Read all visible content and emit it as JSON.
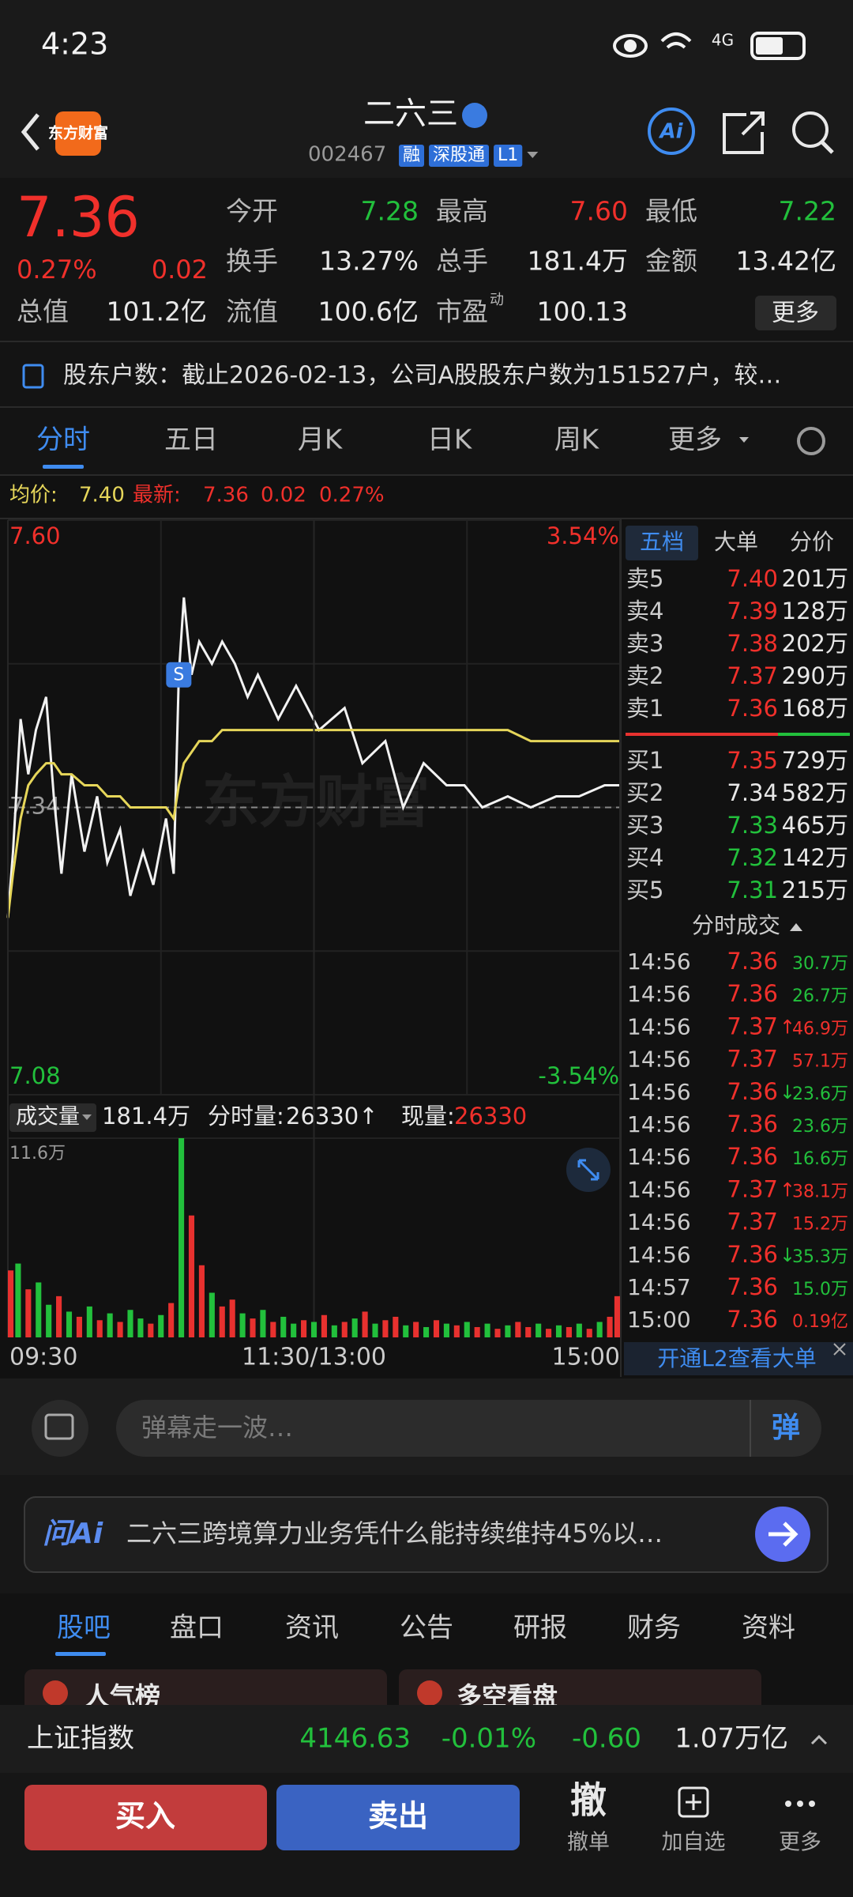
{
  "status_bar": {
    "time": "4:23",
    "network": "4G"
  },
  "header": {
    "logo": "东方财富",
    "name": "二六三",
    "code": "002467",
    "tags": [
      "融",
      "深股通",
      "L1"
    ],
    "ai": "Ai"
  },
  "quote": {
    "price": "7.36",
    "change_pct": "0.27%",
    "change": "0.02",
    "pe_badge": "动",
    "more": "更多",
    "fields": [
      {
        "label": "今开",
        "value": "7.28",
        "color": "#22c03c"
      },
      {
        "label": "最高",
        "value": "7.60",
        "color": "#f0302b"
      },
      {
        "label": "最低",
        "value": "7.22",
        "color": "#22c03c"
      },
      {
        "label": "换手",
        "value": "13.27%",
        "color": "#e8e8e8"
      },
      {
        "label": "总手",
        "value": "181.4万",
        "color": "#e8e8e8"
      },
      {
        "label": "金额",
        "value": "13.42亿",
        "color": "#e8e8e8"
      },
      {
        "label": "总值",
        "value": "101.2亿",
        "color": "#e8e8e8"
      },
      {
        "label": "流值",
        "value": "100.6亿",
        "color": "#e8e8e8"
      },
      {
        "label": "市盈",
        "value": "100.13",
        "color": "#e8e8e8"
      }
    ]
  },
  "news": "股东户数：截止2026-02-13，公司A股股东户数为151527户，较…",
  "tabs": [
    "分时",
    "五日",
    "月K",
    "日K",
    "周K",
    "更多"
  ],
  "summary": {
    "avg_label": "均价:",
    "avg": "7.40",
    "last_label": "最新:",
    "last": "7.36",
    "change": "0.02",
    "change_pct": "0.27%"
  },
  "chart_data": [
    {
      "type": "line",
      "watermark": "东方财富",
      "xlim": [
        0,
        240
      ],
      "ylim": [
        7.08,
        7.6
      ],
      "yticks": [
        {
          "value": 7.6,
          "label": "7.60"
        },
        7.34,
        7.08
      ],
      "y2lim": [
        -3.54,
        3.54
      ],
      "y2ticks": [
        {
          "value": 3.54,
          "label": "3.54%"
        },
        {
          "value": -3.54,
          "label": "-3.54%"
        }
      ],
      "x": [
        0,
        2,
        5,
        8,
        11,
        15,
        18,
        21,
        25,
        30,
        35,
        39,
        44,
        48,
        53,
        57,
        62,
        65,
        67,
        69,
        72,
        75,
        80,
        84,
        89,
        94,
        98,
        106,
        113,
        122,
        132,
        139,
        148,
        155,
        163,
        172,
        179,
        186,
        196,
        205,
        215,
        224,
        234,
        240
      ],
      "series": [
        {
          "color": "#f2f2f2",
          "values": [
            7.24,
            7.3,
            7.42,
            7.37,
            7.41,
            7.44,
            7.35,
            7.28,
            7.37,
            7.3,
            7.35,
            7.29,
            7.32,
            7.26,
            7.3,
            7.27,
            7.33,
            7.28,
            7.46,
            7.53,
            7.46,
            7.49,
            7.47,
            7.49,
            7.47,
            7.44,
            7.46,
            7.42,
            7.45,
            7.41,
            7.43,
            7.38,
            7.4,
            7.34,
            7.38,
            7.36,
            7.36,
            7.34,
            7.35,
            7.34,
            7.35,
            7.35,
            7.36,
            7.36
          ]
        },
        {
          "color": "#e6d65a",
          "values": [
            7.24,
            7.28,
            7.33,
            7.36,
            7.37,
            7.38,
            7.38,
            7.37,
            7.37,
            7.36,
            7.36,
            7.35,
            7.35,
            7.34,
            7.34,
            7.34,
            7.34,
            7.33,
            7.36,
            7.38,
            7.39,
            7.4,
            7.4,
            7.41,
            7.41,
            7.41,
            7.41,
            7.41,
            7.41,
            7.41,
            7.41,
            7.41,
            7.41,
            7.41,
            7.41,
            7.41,
            7.41,
            7.41,
            7.41,
            7.4,
            7.4,
            7.4,
            7.4,
            7.4
          ]
        }
      ],
      "annotations": [
        {
          "x": 67,
          "y": 7.46,
          "label": "S"
        }
      ]
    },
    {
      "type": "bar",
      "xlim": [
        0,
        240
      ],
      "ylim": [
        0,
        11.6
      ],
      "yticks": [
        {
          "value": 11.6,
          "label": "11.6万"
        }
      ],
      "xticks": [
        {
          "value": 0,
          "label": "09:30"
        },
        {
          "value": 120,
          "label": "11:30/13:00"
        },
        {
          "value": 240,
          "label": "15:00"
        }
      ],
      "x": [
        0,
        4,
        8,
        12,
        16,
        20,
        24,
        28,
        32,
        36,
        40,
        44,
        48,
        52,
        56,
        60,
        64,
        68,
        72,
        76,
        80,
        84,
        88,
        92,
        96,
        100,
        104,
        108,
        112,
        116,
        120,
        124,
        128,
        132,
        136,
        140,
        144,
        148,
        152,
        156,
        160,
        164,
        168,
        172,
        176,
        180,
        184,
        188,
        192,
        196,
        200,
        204,
        208,
        212,
        216,
        220,
        224,
        228,
        232,
        236,
        240
      ],
      "values": [
        3.9,
        4.3,
        2.8,
        3.2,
        1.9,
        2.4,
        1.5,
        1.2,
        1.8,
        1.0,
        1.4,
        0.9,
        1.6,
        1.1,
        0.8,
        1.3,
        2.0,
        11.6,
        7.1,
        4.2,
        2.6,
        1.8,
        2.2,
        1.4,
        1.1,
        1.6,
        0.9,
        1.2,
        0.8,
        1.0,
        0.9,
        1.3,
        0.7,
        0.9,
        1.1,
        1.5,
        0.8,
        1.0,
        1.2,
        0.7,
        0.9,
        0.6,
        1.0,
        0.8,
        0.7,
        0.9,
        0.6,
        0.8,
        0.5,
        0.7,
        0.9,
        0.6,
        0.8,
        0.5,
        0.7,
        0.6,
        0.8,
        0.5,
        0.9,
        1.2,
        2.4
      ],
      "colors": [
        "#e8312f",
        "#22c03c",
        "#e8312f",
        "#22c03c",
        "#22c03c",
        "#e8312f",
        "#22c03c",
        "#e8312f",
        "#22c03c",
        "#e8312f",
        "#22c03c",
        "#e8312f",
        "#22c03c",
        "#22c03c",
        "#e8312f",
        "#22c03c",
        "#e8312f",
        "#22c03c",
        "#e8312f",
        "#e8312f",
        "#22c03c",
        "#e8312f",
        "#e8312f",
        "#22c03c",
        "#e8312f",
        "#22c03c",
        "#e8312f",
        "#22c03c",
        "#22c03c",
        "#e8312f",
        "#22c03c",
        "#e8312f",
        "#22c03c",
        "#e8312f",
        "#22c03c",
        "#e8312f",
        "#22c03c",
        "#e8312f",
        "#e8312f",
        "#22c03c",
        "#e8312f",
        "#22c03c",
        "#e8312f",
        "#22c03c",
        "#e8312f",
        "#22c03c",
        "#e8312f",
        "#22c03c",
        "#e8312f",
        "#22c03c",
        "#e8312f",
        "#e8312f",
        "#22c03c",
        "#e8312f",
        "#22c03c",
        "#e8312f",
        "#22c03c",
        "#e8312f",
        "#22c03c",
        "#e8312f",
        "#e8312f"
      ]
    }
  ],
  "volume_header": {
    "label": "成交量",
    "total": "181.4万",
    "minute_label": "分时量:",
    "minute": "26330↑",
    "current_label": "现量:",
    "current": "26330"
  },
  "order_book": {
    "tabs": [
      "五档",
      "大单",
      "分价"
    ],
    "asks": [
      {
        "label": "卖5",
        "price": "7.40",
        "volume": "201万",
        "color": "#f0302b"
      },
      {
        "label": "卖4",
        "price": "7.39",
        "volume": "128万",
        "color": "#f0302b"
      },
      {
        "label": "卖3",
        "price": "7.38",
        "volume": "202万",
        "color": "#f0302b"
      },
      {
        "label": "卖2",
        "price": "7.37",
        "volume": "290万",
        "color": "#f0302b"
      },
      {
        "label": "卖1",
        "price": "7.36",
        "volume": "168万",
        "color": "#f0302b"
      }
    ],
    "bids": [
      {
        "label": "买1",
        "price": "7.35",
        "volume": "729万",
        "color": "#f0302b"
      },
      {
        "label": "买2",
        "price": "7.34",
        "volume": "582万",
        "color": "#e8e8e8"
      },
      {
        "label": "买3",
        "price": "7.33",
        "volume": "465万",
        "color": "#22c03c"
      },
      {
        "label": "买4",
        "price": "7.32",
        "volume": "142万",
        "color": "#22c03c"
      },
      {
        "label": "买5",
        "price": "7.31",
        "volume": "215万",
        "color": "#22c03c"
      }
    ]
  },
  "trades": {
    "title": "分时成交",
    "rows": [
      {
        "time": "14:56",
        "price": "7.36",
        "volume": "30.7万",
        "volume_color": "#22c03c"
      },
      {
        "time": "14:56",
        "price": "7.36",
        "volume": "26.7万",
        "volume_color": "#22c03c"
      },
      {
        "time": "14:56",
        "price": "7.37",
        "flag": "↑",
        "volume": "46.9万",
        "volume_color": "#f0302b"
      },
      {
        "time": "14:56",
        "price": "7.37",
        "volume": "57.1万",
        "volume_color": "#f0302b"
      },
      {
        "time": "14:56",
        "price": "7.36",
        "flag": "↓",
        "volume": "23.6万",
        "volume_color": "#22c03c"
      },
      {
        "time": "14:56",
        "price": "7.36",
        "volume": "23.6万",
        "volume_color": "#22c03c"
      },
      {
        "time": "14:56",
        "price": "7.36",
        "volume": "16.6万",
        "volume_color": "#22c03c"
      },
      {
        "time": "14:56",
        "price": "7.37",
        "flag": "↑",
        "volume": "38.1万",
        "volume_color": "#f0302b"
      },
      {
        "time": "14:56",
        "price": "7.37",
        "volume": "15.2万",
        "volume_color": "#f0302b"
      },
      {
        "time": "14:56",
        "price": "7.36",
        "flag": "↓",
        "volume": "35.3万",
        "volume_color": "#22c03c"
      },
      {
        "time": "14:57",
        "price": "7.36",
        "volume": "15.0万",
        "volume_color": "#22c03c"
      },
      {
        "time": "15:00",
        "price": "7.36",
        "volume": "0.19亿",
        "volume_color": "#f0302b"
      }
    ]
  },
  "l2_banner": "开通L2查看大单",
  "danmu": {
    "placeholder": "弹幕走一波…",
    "button": "弹"
  },
  "ai": {
    "logo": "问Ai",
    "question": "二六三跨境算力业务凭什么能持续维持45%以…"
  },
  "bottom_tabs": [
    "股吧",
    "盘口",
    "资讯",
    "公告",
    "研报",
    "财务",
    "资料"
  ],
  "cards": [
    "人气榜",
    "多空看盘"
  ],
  "index_bar": {
    "name": "上证指数",
    "value": "4146.63",
    "pct": "-0.01%",
    "change": "-0.60",
    "amount": "1.07万亿"
  },
  "actions": {
    "buy": "买入",
    "sell": "卖出",
    "cancel_icon": "撤",
    "cancel": "撤单",
    "watch": "加自选",
    "more": "更多"
  }
}
